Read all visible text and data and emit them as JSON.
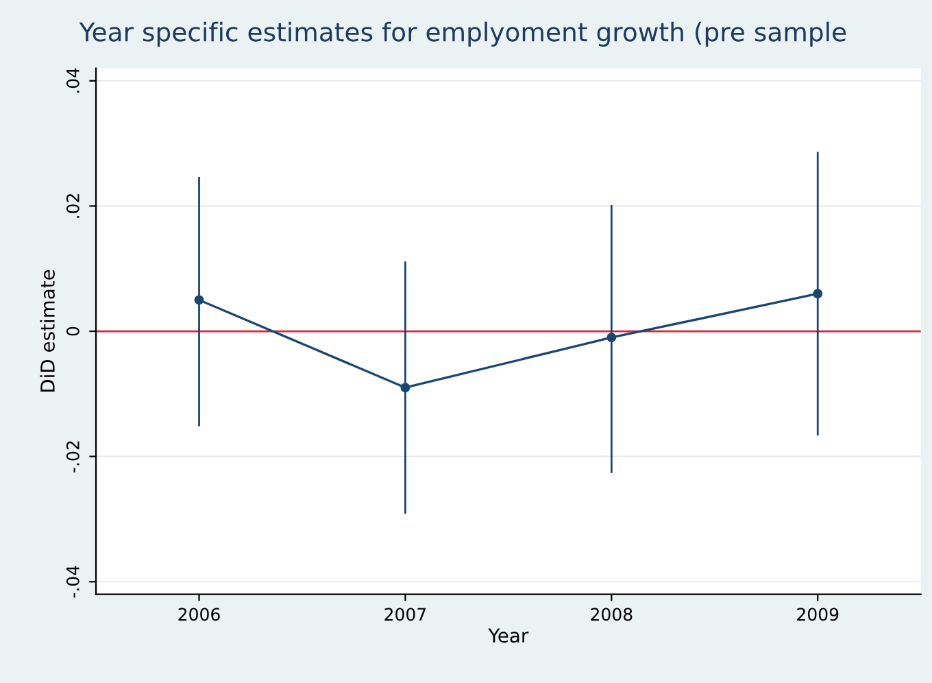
{
  "chart_data": {
    "type": "line",
    "title": "Year specific estimates for emplyoment growth (pre sample",
    "xlabel": "Year",
    "ylabel": "DiD estimate",
    "x": [
      2006,
      2007,
      2008,
      2009
    ],
    "series": [
      {
        "color": "#1a476f",
        "values": [
          0.005,
          -0.009,
          -0.001,
          0.006
        ],
        "errors": [
          [
            -0.015,
            0.0245
          ],
          [
            -0.029,
            0.011
          ],
          [
            -0.0225,
            0.02
          ],
          [
            -0.0165,
            0.0285
          ]
        ]
      }
    ],
    "xlim": [
      2005.5,
      2009.5
    ],
    "xticks": [
      2006,
      2007,
      2008,
      2009
    ],
    "ylim": [
      -0.042,
      0.042
    ],
    "yticks": [
      {
        "value": -0.04,
        "label": "-.04"
      },
      {
        "value": -0.02,
        "label": "-.02"
      },
      0,
      {
        "value": 0.02,
        "label": ".02"
      },
      {
        "value": 0.04,
        "label": ".04"
      }
    ],
    "ref_lines": [
      {
        "axis": "y",
        "value": 0,
        "color": "#d7263d"
      }
    ],
    "grid": "y",
    "marker": "circle",
    "line_style": "solid"
  }
}
